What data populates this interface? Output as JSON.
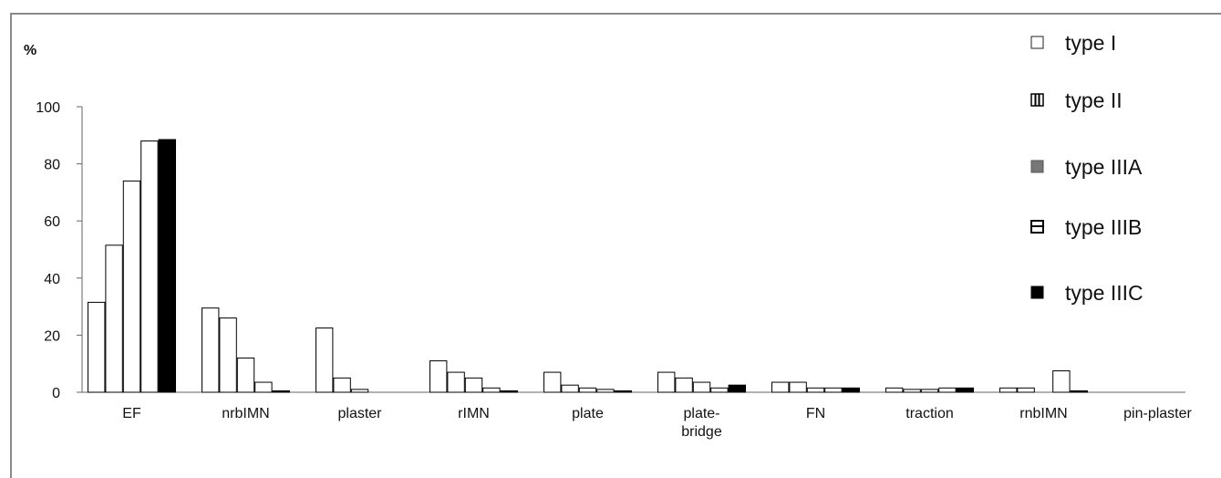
{
  "chart_data": {
    "type": "bar",
    "unit_label": "%",
    "ylim": [
      0,
      100
    ],
    "yticks": [
      "0",
      "20",
      "40",
      "60",
      "80",
      "100"
    ],
    "categories": [
      "EF",
      "nrbIMN",
      "plaster",
      "rIMN",
      "plate",
      "plate-bridge",
      "FN",
      "traction",
      "rnbIMN",
      "pin-plaster"
    ],
    "category_lines": [
      [
        "EF"
      ],
      [
        "nrbIMN"
      ],
      [
        "plaster"
      ],
      [
        "rIMN"
      ],
      [
        "plate"
      ],
      [
        "plate-",
        "bridge"
      ],
      [
        "FN"
      ],
      [
        "traction"
      ],
      [
        "rnbIMN"
      ],
      [
        "pin-plaster"
      ]
    ],
    "series": [
      {
        "name": "type I",
        "fill": "#ffffff",
        "values": [
          31.5,
          29.5,
          22.5,
          11,
          7,
          7,
          3.5,
          1.5,
          1.5,
          0
        ]
      },
      {
        "name": "type II",
        "fill": "#ffffff",
        "values": [
          51.5,
          26,
          5,
          7,
          2.5,
          5,
          3.5,
          1,
          1.5,
          0
        ]
      },
      {
        "name": "type IIIA",
        "fill": "#ffffff",
        "values": [
          74,
          12,
          1,
          5,
          1.5,
          3.5,
          1.5,
          1,
          0,
          0
        ]
      },
      {
        "name": "type IIIB",
        "fill": "#ffffff",
        "values": [
          88,
          3.5,
          0,
          1.5,
          1,
          1.5,
          1.5,
          1.5,
          7.5,
          0
        ]
      },
      {
        "name": "type IIIC",
        "fill": "#000000",
        "values": [
          88.5,
          0.5,
          0,
          0.5,
          0.5,
          2.5,
          1.5,
          1.5,
          0.5,
          0
        ]
      }
    ],
    "legend": {
      "placement": "top-right"
    },
    "grid": false
  }
}
